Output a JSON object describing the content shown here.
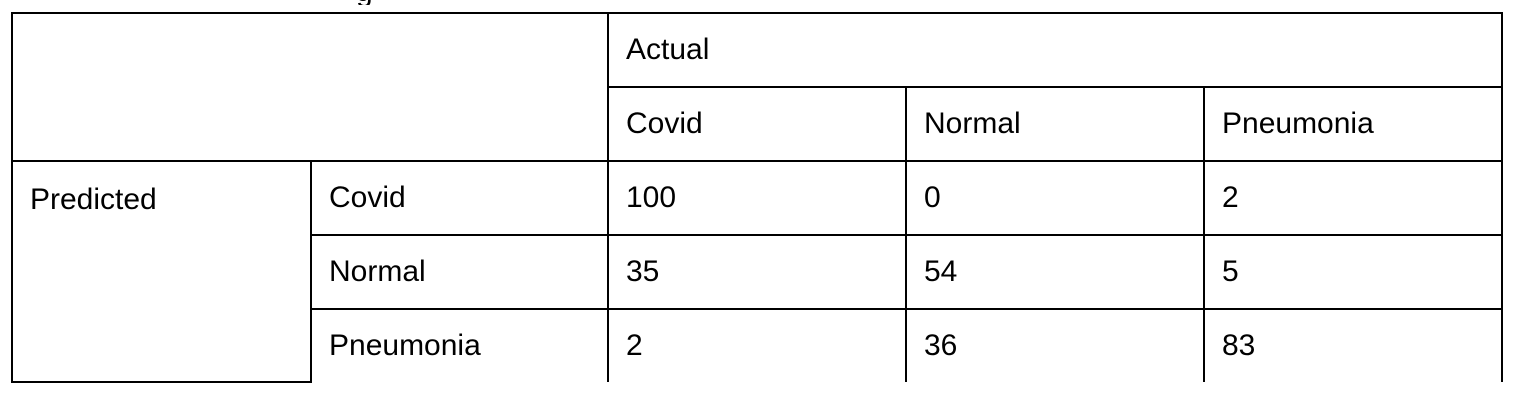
{
  "table": {
    "actual_label": "Actual",
    "predicted_label": "Predicted",
    "column_headers": [
      "Covid",
      "Normal",
      "Pneumonia"
    ],
    "rows": [
      {
        "label": "Covid",
        "values": [
          "100",
          "0",
          "2"
        ]
      },
      {
        "label": "Normal",
        "values": [
          "35",
          "54",
          "5"
        ]
      },
      {
        "label": "Pneumonia",
        "values": [
          "2",
          "36",
          "83"
        ]
      }
    ]
  }
}
